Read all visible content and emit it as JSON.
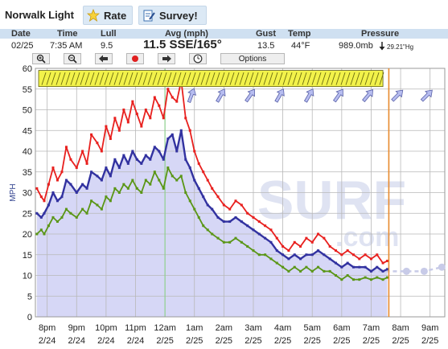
{
  "header": {
    "station_name": "Norwalk Light",
    "rate_label": "Rate",
    "survey_label": "Survey!"
  },
  "observation": {
    "headers": {
      "date": "Date",
      "time": "Time",
      "lull": "Lull",
      "avg": "Avg (mph)",
      "gust": "Gust",
      "temp": "Temp",
      "pressure": "Pressure"
    },
    "values": {
      "date": "02/25",
      "time": "7:35 AM",
      "lull": "9.5",
      "avg": "11.5 SSE/165°",
      "gust": "13.5",
      "temp": "44°F",
      "pressure": "989.0mb",
      "pressure_hg": "29.21\"Hg"
    }
  },
  "toolbar": {
    "options_label": "Options",
    "icons": [
      "zoom-in-icon",
      "zoom-out-icon",
      "arrow-left-icon",
      "record-dot-icon",
      "arrow-right-icon",
      "clock-icon"
    ]
  },
  "colors": {
    "gust": "#e8201e",
    "avg": "#3232a0",
    "lull": "#5a9616",
    "area_fill": "#cfd0f5",
    "forecast_dots": "#c8cbe8",
    "now_line": "#e88a2e",
    "midnight_line": "#8fd18f",
    "header_bg": "#cfe0f1",
    "watermark": "#dfe3f2"
  },
  "watermark": {
    "text1": "SURF",
    "text2": ".com"
  },
  "chart_data": {
    "type": "line",
    "ylabel": "MPH",
    "ylim": [
      0,
      60
    ],
    "yticks": [
      0,
      5,
      10,
      15,
      20,
      25,
      30,
      35,
      40,
      45,
      50,
      55,
      60
    ],
    "x_unit": "hours from 8pm 2/24",
    "xlim": [
      -0.4,
      13.5
    ],
    "x_tick_hours": [
      0,
      1,
      2,
      3,
      4,
      5,
      6,
      7,
      8,
      9,
      10,
      11,
      12,
      13
    ],
    "x_tick_times": [
      "8pm",
      "9pm",
      "10pm",
      "11pm",
      "12am",
      "1am",
      "2am",
      "3am",
      "4am",
      "5am",
      "6am",
      "7am",
      "8am",
      "9am"
    ],
    "x_tick_dates": [
      "2/24",
      "2/24",
      "2/24",
      "2/24",
      "2/25",
      "2/25",
      "2/25",
      "2/25",
      "2/25",
      "2/25",
      "2/25",
      "2/25",
      "2/25",
      "2/25"
    ],
    "midnight_marker_hour": 4,
    "now_marker_hour": 11.6,
    "series": [
      {
        "key": "gust",
        "x": [
          -0.35,
          -0.2,
          -0.1,
          0.05,
          0.2,
          0.35,
          0.5,
          0.65,
          0.8,
          1.0,
          1.2,
          1.35,
          1.5,
          1.7,
          1.85,
          2.0,
          2.15,
          2.3,
          2.45,
          2.6,
          2.75,
          2.9,
          3.05,
          3.2,
          3.35,
          3.5,
          3.65,
          3.8,
          3.95,
          4.1,
          4.25,
          4.4,
          4.55,
          4.7,
          4.85,
          5.0,
          5.15,
          5.3,
          5.45,
          5.6,
          5.8,
          6.0,
          6.2,
          6.4,
          6.6,
          6.8,
          7.0,
          7.2,
          7.4,
          7.6,
          7.8,
          8.0,
          8.2,
          8.4,
          8.6,
          8.8,
          9.0,
          9.2,
          9.4,
          9.6,
          9.8,
          10.0,
          10.2,
          10.4,
          10.6,
          10.8,
          11.0,
          11.2,
          11.4,
          11.55
        ],
        "y": [
          31,
          29,
          28,
          32,
          36,
          33,
          35,
          41,
          38,
          36,
          40,
          37,
          44,
          42,
          40,
          46,
          43,
          48,
          45,
          50,
          47,
          52,
          49,
          46,
          50,
          48,
          53,
          51,
          48,
          55,
          53,
          52,
          57,
          48,
          45,
          40,
          37,
          35,
          33,
          31,
          29,
          27,
          26,
          28,
          27,
          25,
          24,
          23,
          22,
          21,
          19,
          17,
          16,
          18,
          17,
          19,
          18,
          20,
          19,
          17,
          16,
          15,
          16,
          15,
          14,
          15,
          14,
          15,
          13,
          13.5
        ]
      },
      {
        "key": "avg",
        "x": [
          -0.35,
          -0.2,
          -0.1,
          0.05,
          0.2,
          0.35,
          0.5,
          0.65,
          0.8,
          1.0,
          1.2,
          1.35,
          1.5,
          1.7,
          1.85,
          2.0,
          2.15,
          2.3,
          2.45,
          2.6,
          2.75,
          2.9,
          3.05,
          3.2,
          3.35,
          3.5,
          3.65,
          3.8,
          3.95,
          4.1,
          4.25,
          4.4,
          4.55,
          4.7,
          4.85,
          5.0,
          5.15,
          5.3,
          5.45,
          5.6,
          5.8,
          6.0,
          6.2,
          6.4,
          6.6,
          6.8,
          7.0,
          7.2,
          7.4,
          7.6,
          7.8,
          8.0,
          8.2,
          8.4,
          8.6,
          8.8,
          9.0,
          9.2,
          9.4,
          9.6,
          9.8,
          10.0,
          10.2,
          10.4,
          10.6,
          10.8,
          11.0,
          11.2,
          11.4,
          11.55
        ],
        "y": [
          25,
          24,
          25,
          27,
          30,
          28,
          29,
          33,
          32,
          30,
          32,
          31,
          35,
          34,
          33,
          36,
          34,
          38,
          36,
          39,
          37,
          40,
          38,
          37,
          39,
          38,
          41,
          40,
          38,
          43,
          44,
          40,
          45,
          38,
          36,
          33,
          31,
          29,
          27,
          26,
          24,
          23,
          23,
          24,
          23,
          22,
          21,
          20,
          19,
          18,
          16,
          15,
          14,
          15,
          14,
          15,
          15,
          16,
          15,
          14,
          13,
          12,
          13,
          12,
          12,
          12,
          11,
          12,
          11,
          11.5
        ]
      },
      {
        "key": "lull",
        "x": [
          -0.35,
          -0.2,
          -0.1,
          0.05,
          0.2,
          0.35,
          0.5,
          0.65,
          0.8,
          1.0,
          1.2,
          1.35,
          1.5,
          1.7,
          1.85,
          2.0,
          2.15,
          2.3,
          2.45,
          2.6,
          2.75,
          2.9,
          3.05,
          3.2,
          3.35,
          3.5,
          3.65,
          3.8,
          3.95,
          4.1,
          4.25,
          4.4,
          4.55,
          4.7,
          4.85,
          5.0,
          5.15,
          5.3,
          5.45,
          5.6,
          5.8,
          6.0,
          6.2,
          6.4,
          6.6,
          6.8,
          7.0,
          7.2,
          7.4,
          7.6,
          7.8,
          8.0,
          8.2,
          8.4,
          8.6,
          8.8,
          9.0,
          9.2,
          9.4,
          9.6,
          9.8,
          10.0,
          10.2,
          10.4,
          10.6,
          10.8,
          11.0,
          11.2,
          11.4,
          11.55
        ],
        "y": [
          20,
          21,
          20,
          22,
          24,
          23,
          24,
          26,
          25,
          24,
          26,
          25,
          28,
          27,
          26,
          29,
          28,
          31,
          30,
          32,
          31,
          33,
          31,
          30,
          33,
          32,
          35,
          33,
          31,
          36,
          34,
          33,
          34,
          30,
          28,
          26,
          24,
          22,
          21,
          20,
          19,
          18,
          18,
          19,
          18,
          17,
          16,
          15,
          15,
          14,
          13,
          12,
          11,
          12,
          11,
          12,
          11,
          12,
          11,
          11,
          10,
          9,
          10,
          9,
          9,
          9.5,
          9,
          9.5,
          9,
          9.5
        ]
      },
      {
        "key": "forecast",
        "x": [
          12.2,
          12.8,
          13.4
        ],
        "y": [
          11,
          11,
          12
        ]
      }
    ],
    "direction_arrows": {
      "x_hours": [
        4.9,
        5.9,
        6.9,
        7.9,
        8.9,
        9.9,
        10.9,
        11.9,
        12.9
      ],
      "heading_deg": [
        20,
        30,
        35,
        30,
        30,
        35,
        40,
        45,
        45
      ]
    }
  }
}
